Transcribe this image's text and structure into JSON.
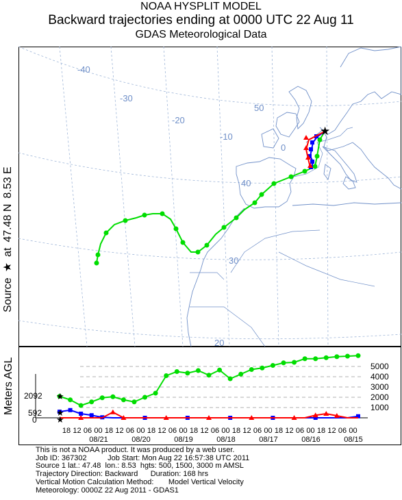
{
  "header": {
    "line1": "NOAA HYSPLIT MODEL",
    "line2": "Backward trajectories ending at 0000 UTC 22 Aug 11",
    "line3": "GDAS Meteorological Data"
  },
  "source_label": {
    "prefix": "Source",
    "star": "★",
    "at": "at",
    "lat": "47.48 N",
    "lon": "8.53 E"
  },
  "map": {
    "longitude_labels": [
      "-40",
      "-30",
      "-20",
      "-10",
      "0"
    ],
    "latitude_labels": [
      "50",
      "40",
      "30",
      "20"
    ],
    "source_marker": "★",
    "trajectory_colors": {
      "low": "#ff0000",
      "mid": "#0000ff",
      "high": "#00dd00"
    }
  },
  "height_plot": {
    "ylabel": "Meters AGL",
    "start_heights": [
      "2092",
      "592",
      "0"
    ],
    "right_ticks": [
      "5000",
      "4000",
      "3000",
      "2000",
      "1000"
    ],
    "hour_ticks": [
      "18",
      "12",
      "06",
      "00",
      "18",
      "12",
      "06",
      "00",
      "18",
      "12",
      "06",
      "00",
      "18",
      "12",
      "06",
      "00",
      "18",
      "12",
      "06",
      "00",
      "18",
      "12",
      "06",
      "00",
      "18",
      "12",
      "06",
      "00"
    ],
    "date_labels": [
      "08/21",
      "08/20",
      "08/19",
      "08/18",
      "08/17",
      "08/16",
      "08/15"
    ]
  },
  "chart_data": {
    "type": "line",
    "xlabel": "",
    "ylabel": "Meters AGL",
    "x_hours_before_end": [
      0,
      6,
      12,
      18,
      24,
      30,
      36,
      42,
      48,
      54,
      60,
      66,
      72,
      78,
      84,
      90,
      96,
      102,
      108,
      114,
      120,
      126,
      132,
      138,
      144,
      150,
      156,
      162,
      168
    ],
    "series": [
      {
        "color": "#00dd00",
        "marker": "circle",
        "values": [
          2092,
          1750,
          1200,
          1550,
          1950,
          2050,
          1750,
          1550,
          2000,
          2400,
          4100,
          4500,
          4350,
          4600,
          4150,
          4650,
          3800,
          4250,
          4700,
          4850,
          5100,
          5350,
          5400,
          5750,
          5750,
          5850,
          5950,
          6000,
          6050
        ]
      },
      {
        "color": "#0000ff",
        "marker": "square",
        "values": [
          592,
          750,
          400,
          250,
          50,
          0,
          0,
          0,
          0,
          0,
          0,
          0,
          0,
          0,
          0,
          0,
          0,
          0,
          0,
          0,
          0,
          0,
          0,
          0,
          0,
          0,
          0,
          0,
          150
        ]
      },
      {
        "color": "#ff0000",
        "marker": "triangle",
        "values": [
          0,
          0,
          0,
          0,
          0,
          550,
          0,
          0,
          0,
          0,
          0,
          0,
          0,
          0,
          0,
          0,
          0,
          0,
          0,
          0,
          0,
          0,
          0,
          0,
          250,
          400,
          200,
          0,
          0
        ]
      }
    ],
    "right_axis_ticks": [
      1000,
      2000,
      3000,
      4000,
      5000
    ]
  },
  "footer": {
    "line1": "This is not a NOAA product. It was produced by a web user.",
    "line2": "Job ID: 367302          Job Start: Mon Aug 22 16:57:38 UTC 2011",
    "line3": "Source 1 lat.: 47.48  lon.: 8.53  hgts: 500, 1500, 3000 m AMSL",
    "line4": "Trajectory Direction: Backward      Duration: 168 hrs",
    "line5": "Vertical Motion Calculation Method:       Model Vertical Velocity",
    "line6": "Meteorology: 0000Z 22 Aug 2011 - GDAS1"
  }
}
